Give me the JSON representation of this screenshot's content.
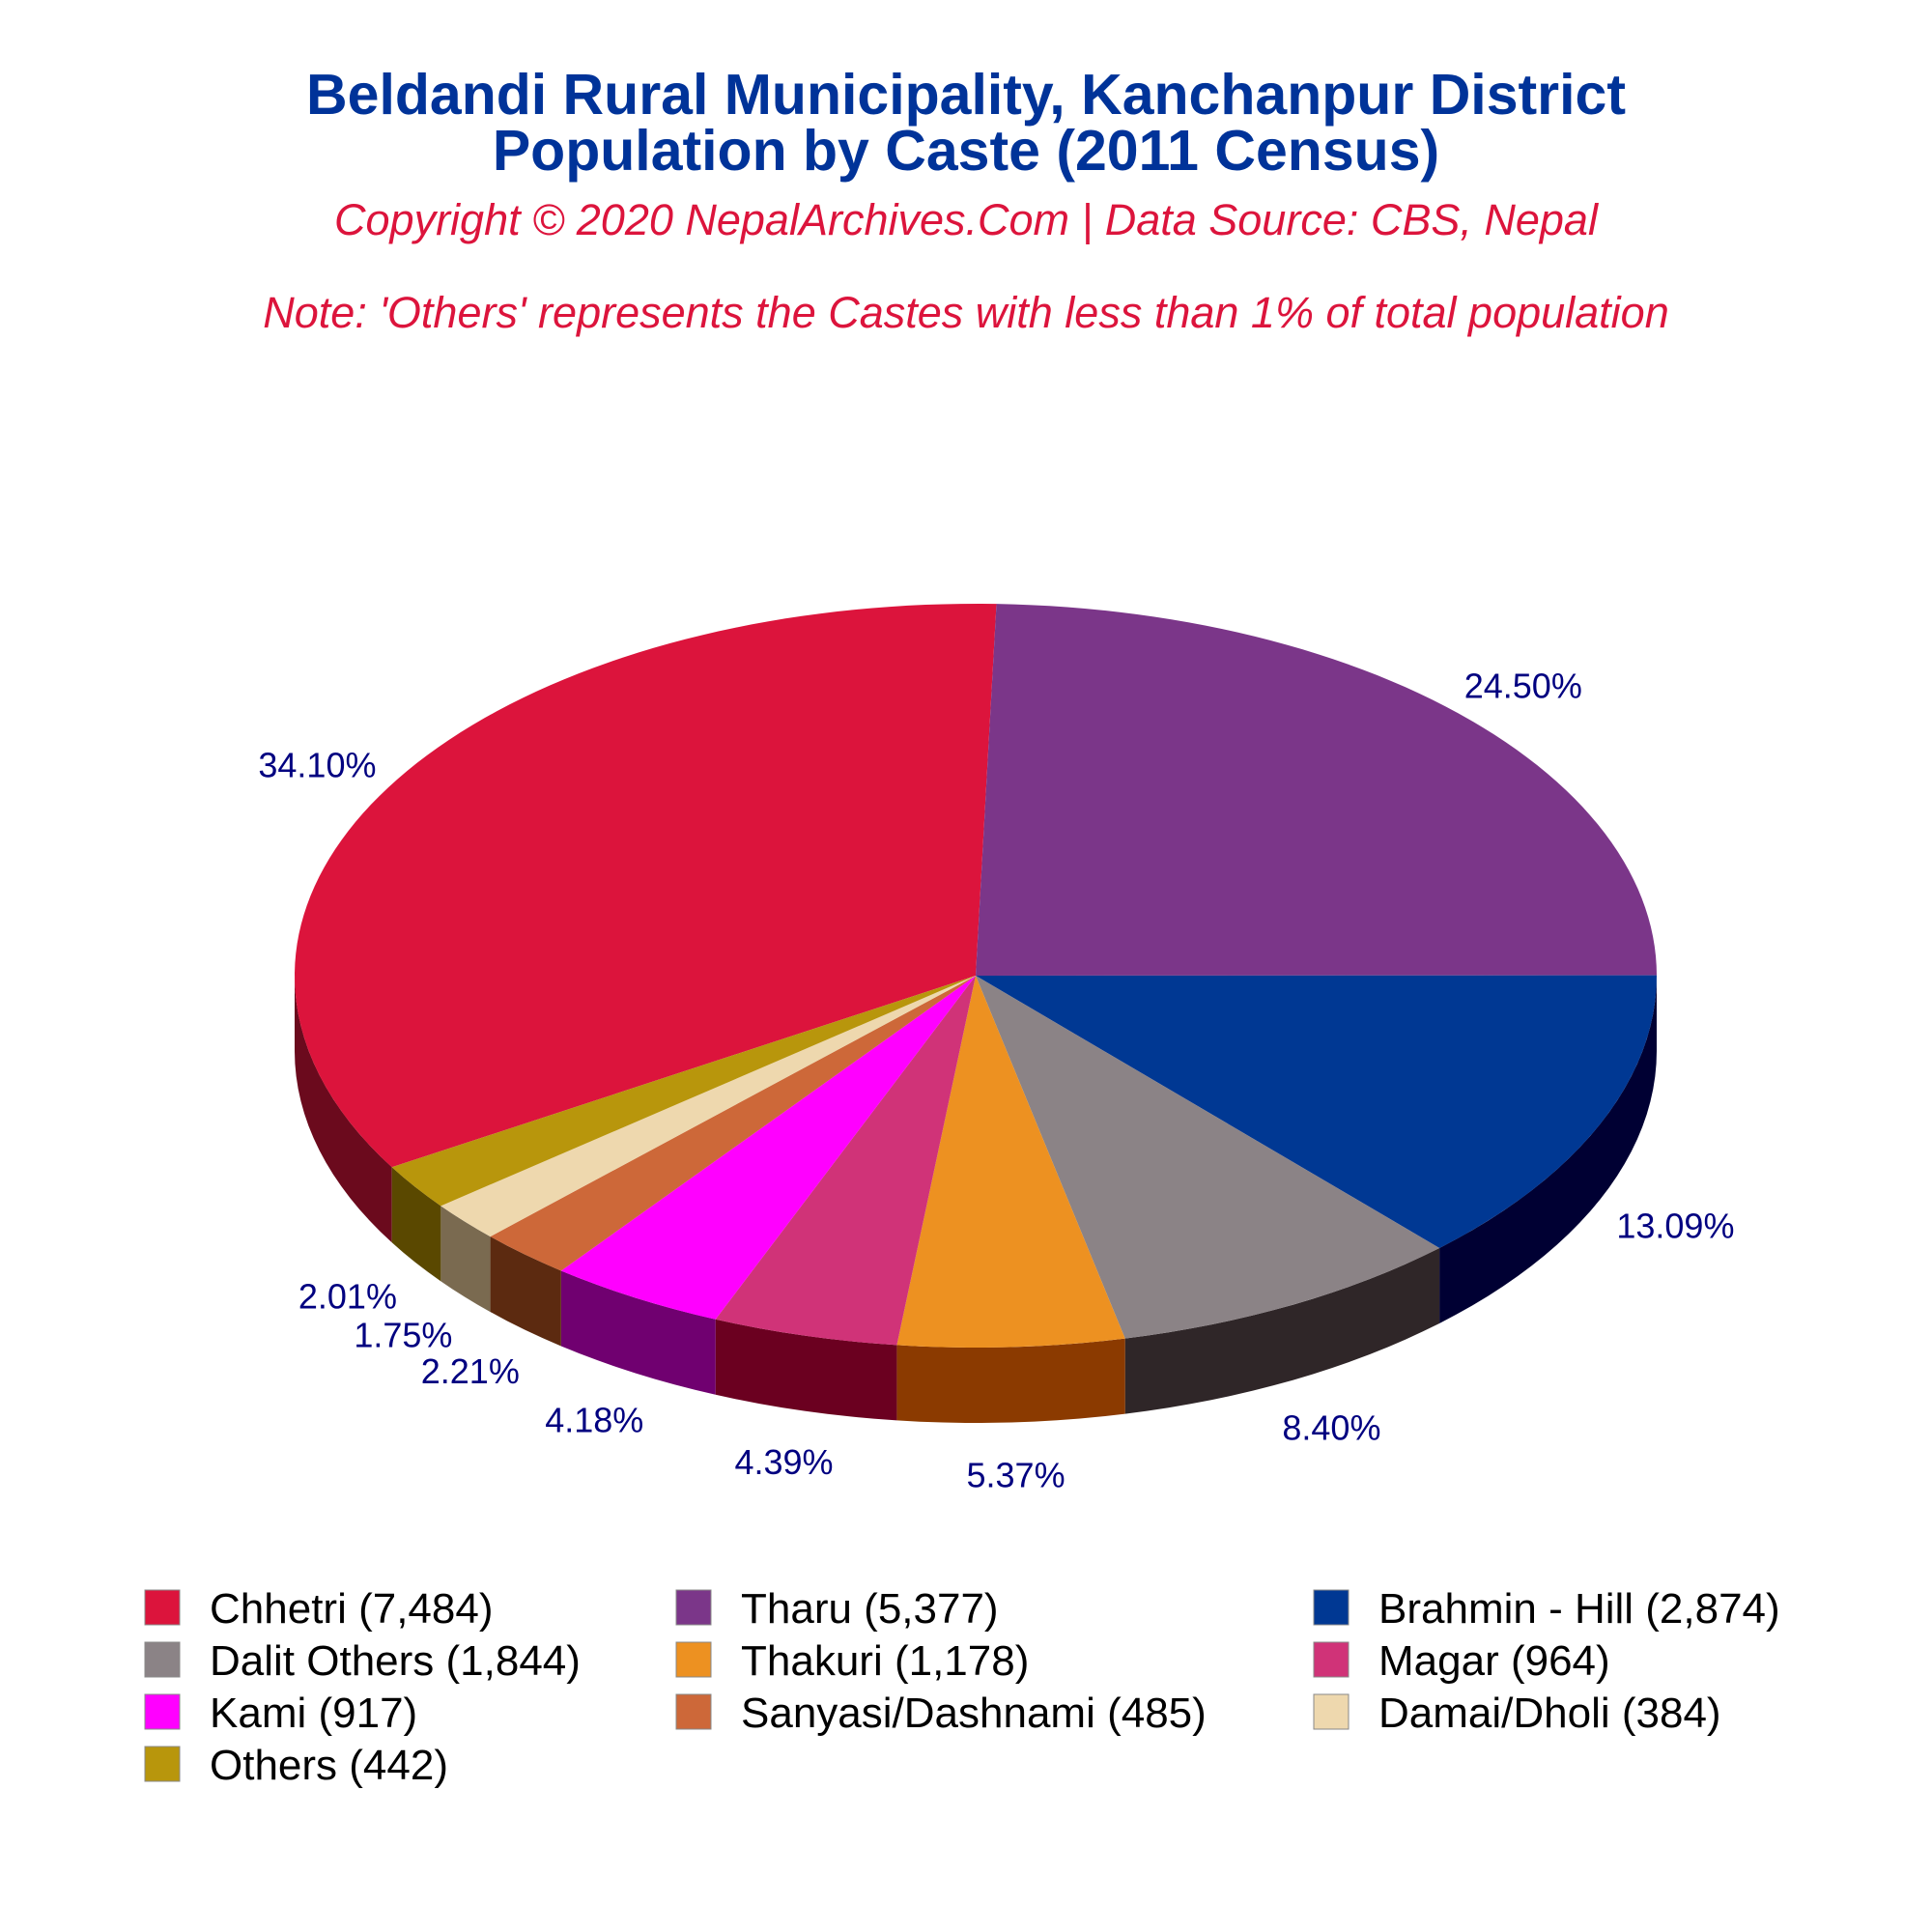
{
  "chart_data": {
    "type": "pie",
    "title_line1": "Beldandi Rural Municipality, Kanchanpur District",
    "title_line2": "Population by Caste (2011 Census)",
    "subtitle": "Copyright © 2020 NepalArchives.Com | Data Source: CBS, Nepal",
    "note": "Note: 'Others' represents the Castes with less than 1% of total population",
    "slices": [
      {
        "name": "Chhetri",
        "value": 7484,
        "pct_label": "34.10%",
        "legend_label": "Chhetri (7,484)",
        "color": "#dc143c",
        "side_color": "#6b0a1d"
      },
      {
        "name": "Tharu",
        "value": 5377,
        "pct_label": "24.50%",
        "legend_label": "Tharu (5,377)",
        "color": "#7b3689",
        "side_color": "#260033"
      },
      {
        "name": "Brahmin - Hill",
        "value": 2874,
        "pct_label": "13.09%",
        "legend_label": "Brahmin - Hill (2,874)",
        "color": "#003893",
        "side_color": "#000033"
      },
      {
        "name": "Dalit Others",
        "value": 1844,
        "pct_label": "8.40%",
        "legend_label": "Dalit Others (1,844)",
        "color": "#8b8386",
        "side_color": "#2f2628"
      },
      {
        "name": "Thakuri",
        "value": 1178,
        "pct_label": "5.37%",
        "legend_label": "Thakuri (1,178)",
        "color": "#ed9121",
        "side_color": "#8b3a00"
      },
      {
        "name": "Magar",
        "value": 964,
        "pct_label": "4.39%",
        "legend_label": "Magar (964)",
        "color": "#d03378",
        "side_color": "#6b0020"
      },
      {
        "name": "Kami",
        "value": 917,
        "pct_label": "4.18%",
        "legend_label": "Kami (917)",
        "color": "#ff00ff",
        "side_color": "#700070"
      },
      {
        "name": "Sanyasi/Dashnami",
        "value": 485,
        "pct_label": "2.21%",
        "legend_label": "Sanyasi/Dashnami (485)",
        "color": "#cd6839",
        "side_color": "#5c2a10"
      },
      {
        "name": "Damai/Dholi",
        "value": 384,
        "pct_label": "1.75%",
        "legend_label": "Damai/Dholi (384)",
        "color": "#eed8ae",
        "side_color": "#7a6a50"
      },
      {
        "name": "Others",
        "value": 442,
        "pct_label": "2.01%",
        "legend_label": "Others (442)",
        "color": "#b8960c",
        "side_color": "#5a4800"
      }
    ],
    "legend_placement": "bottom"
  }
}
